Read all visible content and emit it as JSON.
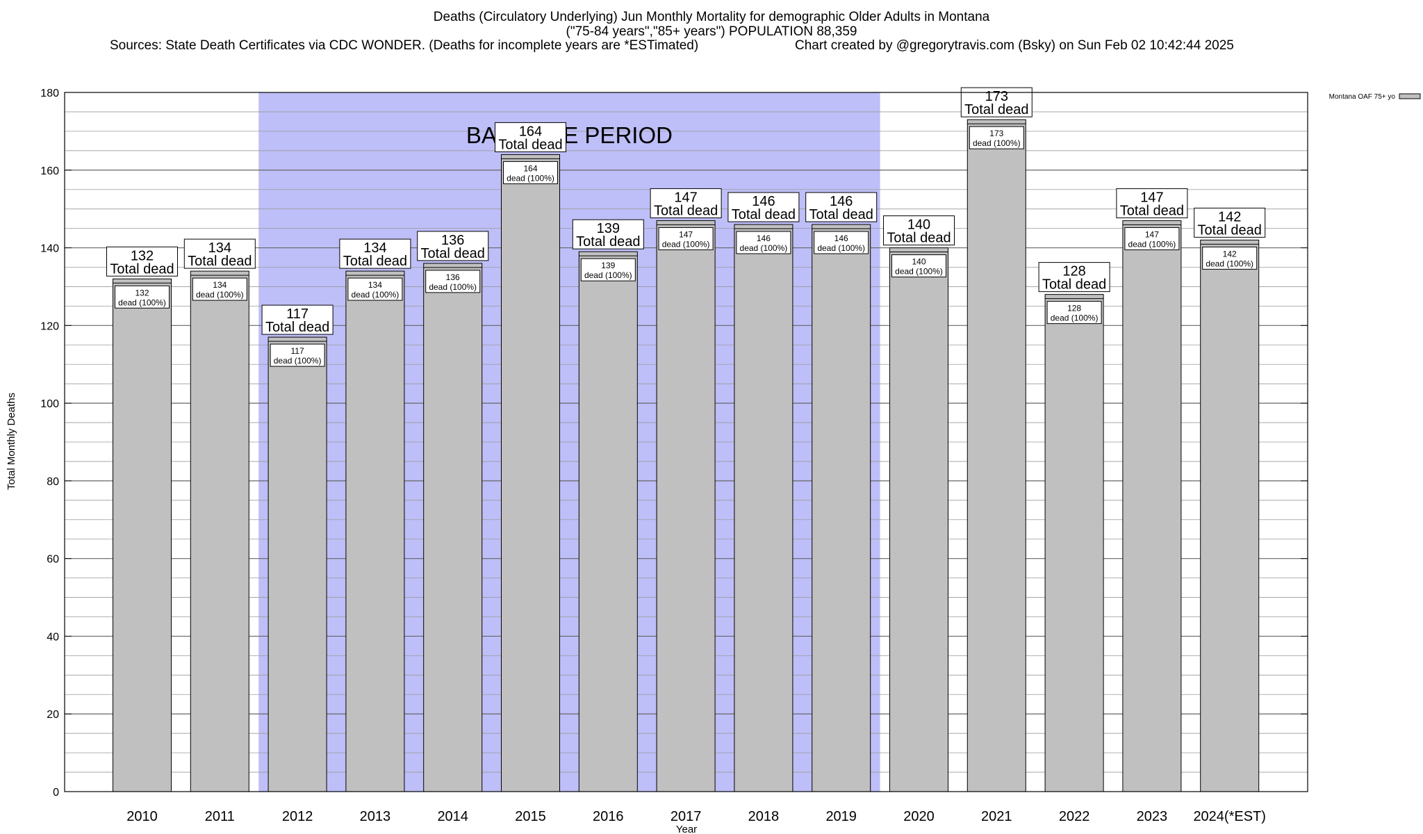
{
  "titles": {
    "line1": "Deaths (Circulatory Underlying) Jun Monthly Mortality for demographic Older Adults in Montana",
    "line2": "(\"75-84 years\",\"85+ years\") POPULATION 88,359",
    "sources": "Sources: State Death Certificates via CDC WONDER. (Deaths for incomplete years are *ESTimated)",
    "credit": "Chart created by @gregorytravis.com (Bsky) on Sun Feb 02 10:42:44 2025"
  },
  "chart_data": {
    "type": "bar",
    "categories": [
      "2010",
      "2011",
      "2012",
      "2013",
      "2014",
      "2015",
      "2016",
      "2017",
      "2018",
      "2019",
      "2020",
      "2021",
      "2022",
      "2023",
      "2024(*EST)"
    ],
    "series": [
      {
        "name": "Montana OAF 75+ yo",
        "color": "#c0c0c0",
        "values": [
          132,
          134,
          117,
          134,
          136,
          164,
          139,
          147,
          146,
          146,
          140,
          173,
          128,
          147,
          142
        ]
      }
    ],
    "xlabel": "Year",
    "ylabel": "Total Monthly Deaths",
    "ylim": [
      0,
      180
    ],
    "yticks": [
      0,
      20,
      40,
      60,
      80,
      100,
      120,
      140,
      160,
      180
    ],
    "grid": true,
    "legend_position": "top-right",
    "annotation_top_suffix": "Total dead",
    "annotation_inner_suffix": "dead (100%)",
    "baseline": {
      "label": "BASELINE PERIOD",
      "start": "2012",
      "end": "2019",
      "color": "#bebef8"
    }
  }
}
